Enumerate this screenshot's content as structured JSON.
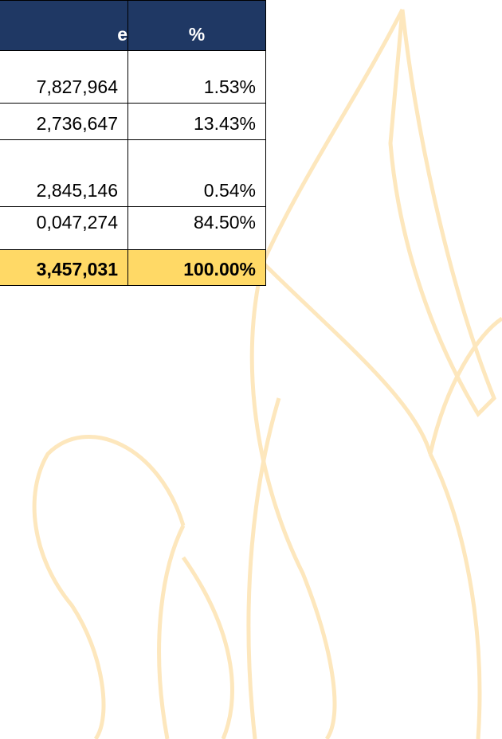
{
  "table": {
    "header": [
      "e",
      "%"
    ],
    "rows": [
      [
        "7,827,964",
        "1.53%"
      ],
      [
        "2,736,647",
        "13.43%"
      ],
      [
        "2,845,146",
        "0.54%"
      ],
      [
        "0,047,274",
        "84.50%"
      ]
    ],
    "total": [
      "3,457,031",
      "100.00%"
    ]
  }
}
